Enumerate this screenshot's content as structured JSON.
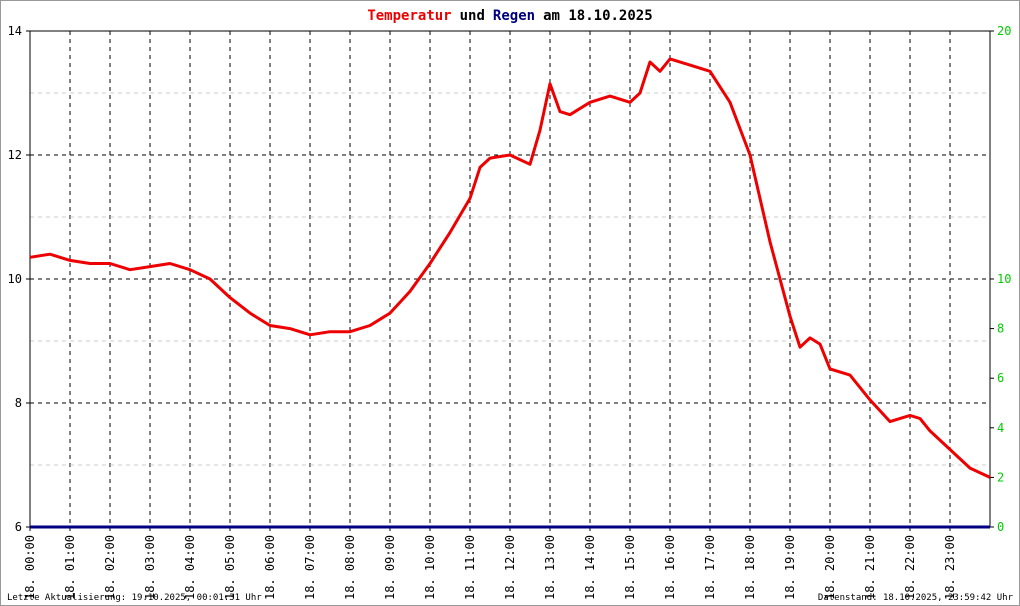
{
  "title": {
    "temp_word": "Temperatur",
    "and_word": "und",
    "rain_word": "Regen",
    "date_prefix": "am 18.10.2025"
  },
  "colors": {
    "temperature": "#ee0000",
    "rain": "#000080",
    "right_axis": "#00cc00",
    "title_black": "#000000"
  },
  "footer": {
    "left": "Letzte Aktualisierung: 19.10.2025, 00:01:31 Uhr",
    "right": "Datenstand: 18.10.2025, 23:59:42 Uhr"
  },
  "chart_data": {
    "type": "line",
    "title": "Temperatur und Regen am 18.10.2025",
    "xlim": [
      0,
      24
    ],
    "ylim_left": [
      6,
      14
    ],
    "ylim_right": [
      0,
      20
    ],
    "y_ticks_left": [
      "6",
      "8",
      "10",
      "12",
      "14"
    ],
    "y_ticks_right": [
      "0",
      "2",
      "4",
      "6",
      "8",
      "10",
      "20"
    ],
    "y_ticks_right_values": [
      0,
      2,
      4,
      6,
      8,
      10,
      20
    ],
    "x_ticks": [
      "18. 00:00",
      "18. 01:00",
      "18. 02:00",
      "18. 03:00",
      "18. 04:00",
      "18. 05:00",
      "18. 06:00",
      "18. 07:00",
      "18. 08:00",
      "18. 09:00",
      "18. 10:00",
      "18. 11:00",
      "18. 12:00",
      "18. 13:00",
      "18. 14:00",
      "18. 15:00",
      "18. 16:00",
      "18. 17:00",
      "18. 18:00",
      "18. 19:00",
      "18. 20:00",
      "18. 21:00",
      "18. 22:00",
      "18. 23:00"
    ],
    "grid": true,
    "series": [
      {
        "name": "Temperatur",
        "x": [
          0,
          0.5,
          1.0,
          1.5,
          2.0,
          2.5,
          3.0,
          3.5,
          4.0,
          4.5,
          5.0,
          5.5,
          6.0,
          6.5,
          7.0,
          7.5,
          8.0,
          8.5,
          9.0,
          9.5,
          10.0,
          10.5,
          11.0,
          11.25,
          11.5,
          12.0,
          12.5,
          12.75,
          13.0,
          13.25,
          13.5,
          14.0,
          14.5,
          15.0,
          15.25,
          15.5,
          15.75,
          16.0,
          16.5,
          17.0,
          17.5,
          18.0,
          18.5,
          19.0,
          19.25,
          19.5,
          19.75,
          20.0,
          20.5,
          21.0,
          21.5,
          22.0,
          22.25,
          22.5,
          23.0,
          23.5,
          24.0
        ],
        "y": [
          10.35,
          10.4,
          10.3,
          10.25,
          10.25,
          10.15,
          10.2,
          10.25,
          10.15,
          10.0,
          9.7,
          9.45,
          9.25,
          9.2,
          9.1,
          9.15,
          9.15,
          9.25,
          9.45,
          9.8,
          10.25,
          10.75,
          11.3,
          11.8,
          11.95,
          12.0,
          11.85,
          12.4,
          13.15,
          12.7,
          12.65,
          12.85,
          12.95,
          12.85,
          13.0,
          13.5,
          13.35,
          13.55,
          13.45,
          13.35,
          12.85,
          12.0,
          10.6,
          9.4,
          8.9,
          9.05,
          8.95,
          8.55,
          8.45,
          8.05,
          7.7,
          7.8,
          7.75,
          7.55,
          7.25,
          6.95,
          6.8
        ]
      },
      {
        "name": "Regen",
        "x": [
          0,
          24
        ],
        "y": [
          0,
          0
        ]
      }
    ]
  }
}
